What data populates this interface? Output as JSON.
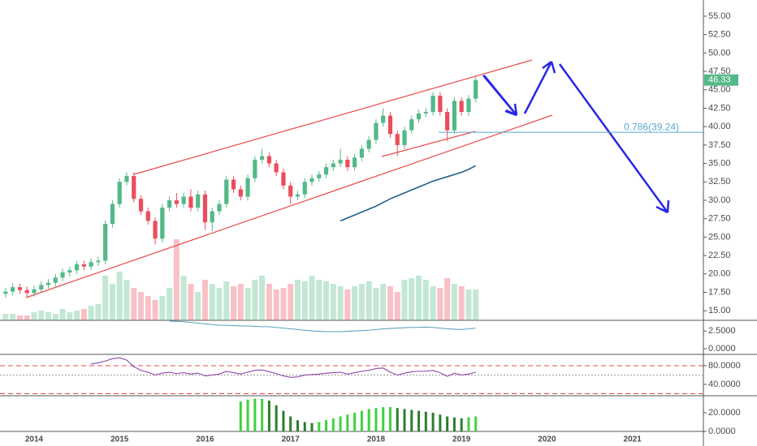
{
  "chart_data": [
    {
      "type": "candlestick",
      "ylim": [
        13.7,
        57.2
      ],
      "yticks": [
        {
          "value": 15,
          "label": "15.00"
        },
        {
          "value": 17.5,
          "label": "17.50"
        },
        {
          "value": 20,
          "label": "20.00"
        },
        {
          "value": 22.5,
          "label": "22.50"
        },
        {
          "value": 25,
          "label": "25.00"
        },
        {
          "value": 27.5,
          "label": "27.50"
        },
        {
          "value": 30,
          "label": "30.00"
        },
        {
          "value": 32.5,
          "label": "32.50"
        },
        {
          "value": 35,
          "label": "35.00"
        },
        {
          "value": 37.5,
          "label": "37.50"
        },
        {
          "value": 40,
          "label": "40.00"
        },
        {
          "value": 42.5,
          "label": "42.50"
        },
        {
          "value": 45,
          "label": "45.00"
        },
        {
          "value": 47.5,
          "label": "47.50"
        },
        {
          "value": 50,
          "label": "50.00"
        },
        {
          "value": 52.5,
          "label": "52.50"
        },
        {
          "value": 55,
          "label": "55.00"
        }
      ],
      "x_labels": [
        "2014",
        "2015",
        "2016",
        "2017",
        "2018",
        "2019",
        "2020",
        "2021"
      ],
      "up_color": "#53b987",
      "down_color": "#eb4d5c",
      "open": [
        17.3,
        17.6,
        18.2,
        17.8,
        17.4,
        17.9,
        18.5,
        18.8,
        19.5,
        20.2,
        20.5,
        21.3,
        21.0,
        21.6,
        21.8,
        26.8,
        29.5,
        32.5,
        33.3,
        30.2,
        28.5,
        27.2,
        24.8,
        29.0,
        30.0,
        29.5,
        30.5,
        29.0,
        30.8,
        27.0,
        28.5,
        29.5,
        32.8,
        31.5,
        30.5,
        33.0,
        35.5,
        36.0,
        35.0,
        33.8,
        32.0,
        30.5,
        30.8,
        32.5,
        33.0,
        33.5,
        34.5,
        35.0,
        35.5,
        34.5,
        35.8,
        37.0,
        38.2,
        40.5,
        41.5,
        39.0,
        37.5,
        39.5,
        41.0,
        41.8,
        42.0,
        44.2,
        42.0,
        39.5,
        43.5,
        42.0,
        43.8
      ],
      "high": [
        18.1,
        18.7,
        18.7,
        18.3,
        18.4,
        19.0,
        19.3,
        20.0,
        20.7,
        21.0,
        21.8,
        21.8,
        22.1,
        22.3,
        27.3,
        30.0,
        33.0,
        33.8,
        33.8,
        30.7,
        29.0,
        27.7,
        29.5,
        30.5,
        31.0,
        31.0,
        31.5,
        31.3,
        31.3,
        29.0,
        30.0,
        33.3,
        33.3,
        32.0,
        33.5,
        36.0,
        37.0,
        36.5,
        35.5,
        34.3,
        32.5,
        31.3,
        33.0,
        33.5,
        34.0,
        35.0,
        35.5,
        37.0,
        36.0,
        36.3,
        37.5,
        38.7,
        41.0,
        42.5,
        42.0,
        39.5,
        40.0,
        41.5,
        42.3,
        42.5,
        44.7,
        44.7,
        42.5,
        44.0,
        44.0,
        44.3,
        46.8
      ],
      "low": [
        16.8,
        17.1,
        17.3,
        16.9,
        16.9,
        17.4,
        18.0,
        18.3,
        19.0,
        19.7,
        20.0,
        20.5,
        20.5,
        21.1,
        21.3,
        26.3,
        29.0,
        32.0,
        29.7,
        28.0,
        26.7,
        24.0,
        24.3,
        28.5,
        29.0,
        29.0,
        28.5,
        28.5,
        26.0,
        25.8,
        28.0,
        29.0,
        31.0,
        30.0,
        30.0,
        32.5,
        35.0,
        34.5,
        33.3,
        31.5,
        29.5,
        30.0,
        30.3,
        32.0,
        32.5,
        33.0,
        34.0,
        34.5,
        34.0,
        34.0,
        35.3,
        36.5,
        37.7,
        40.0,
        38.5,
        36.0,
        37.0,
        39.0,
        40.5,
        41.3,
        41.5,
        41.5,
        38.0,
        39.0,
        41.5,
        41.5,
        43.3
      ],
      "close": [
        17.6,
        18.2,
        17.8,
        17.4,
        17.9,
        18.5,
        18.8,
        19.5,
        20.2,
        20.5,
        21.3,
        21.0,
        21.6,
        21.8,
        26.8,
        29.5,
        32.5,
        33.3,
        30.2,
        28.5,
        27.2,
        24.8,
        29.0,
        30.0,
        29.5,
        30.5,
        29.0,
        30.8,
        27.0,
        28.5,
        29.5,
        32.8,
        31.5,
        30.5,
        33.0,
        35.5,
        36.0,
        35.0,
        33.8,
        32.0,
        30.5,
        30.8,
        32.5,
        33.0,
        33.5,
        34.5,
        35.0,
        35.5,
        34.5,
        35.8,
        37.0,
        38.2,
        40.5,
        41.5,
        39.0,
        37.5,
        39.5,
        41.0,
        41.8,
        42.0,
        44.2,
        42.0,
        39.5,
        43.5,
        42.0,
        43.8,
        46.33
      ],
      "volume": [
        8,
        8,
        6,
        6,
        10,
        12,
        10,
        8,
        14,
        10,
        12,
        14,
        18,
        20,
        55,
        45,
        60,
        50,
        40,
        35,
        30,
        25,
        30,
        40,
        100,
        55,
        45,
        35,
        50,
        45,
        40,
        48,
        42,
        45,
        40,
        50,
        55,
        45,
        38,
        40,
        45,
        50,
        48,
        55,
        50,
        48,
        45,
        42,
        38,
        42,
        45,
        48,
        40,
        45,
        42,
        35,
        50,
        52,
        55,
        50,
        42,
        40,
        52,
        45,
        42,
        38,
        38
      ],
      "moving_average": [
        null,
        null,
        null,
        null,
        null,
        null,
        null,
        null,
        null,
        null,
        null,
        null,
        null,
        null,
        null,
        null,
        null,
        null,
        null,
        null,
        null,
        null,
        null,
        null,
        null,
        null,
        null,
        null,
        null,
        null,
        null,
        null,
        null,
        null,
        null,
        null,
        null,
        null,
        null,
        null,
        null,
        null,
        null,
        null,
        null,
        null,
        null,
        27.2,
        27.6,
        28.0,
        28.4,
        28.8,
        29.2,
        29.7,
        30.2,
        30.6,
        31.0,
        31.4,
        31.8,
        32.2,
        32.6,
        32.9,
        33.2,
        33.5,
        33.8,
        34.2,
        34.7
      ],
      "ma_color": "#1f5f8b",
      "fib_level": 39.24,
      "fib_label": "0.786(39.24)",
      "fib_color": "#5aa6cf"
    },
    {
      "type": "line",
      "ylim": [
        -0.8,
        4
      ],
      "yticks": [
        {
          "value": 0,
          "label": "0.0000"
        },
        {
          "value": 2.5,
          "label": "2.5000"
        }
      ],
      "color": "#5a9fc0",
      "values": [
        null,
        null,
        null,
        null,
        null,
        null,
        null,
        null,
        null,
        null,
        null,
        null,
        null,
        null,
        null,
        null,
        null,
        null,
        null,
        null,
        null,
        null,
        null,
        3.9,
        3.85,
        3.8,
        3.7,
        3.6,
        3.5,
        3.4,
        3.3,
        3.3,
        3.25,
        3.2,
        3.2,
        3.15,
        3.1,
        3.1,
        3.0,
        2.9,
        2.8,
        2.7,
        2.6,
        2.5,
        2.45,
        2.4,
        2.4,
        2.4,
        2.45,
        2.5,
        2.55,
        2.6,
        2.7,
        2.8,
        2.85,
        2.9,
        2.95,
        3.0,
        3.0,
        3.05,
        3.0,
        2.9,
        2.8,
        2.75,
        2.7,
        2.8,
        2.9
      ]
    },
    {
      "type": "line",
      "ylim": [
        15.6,
        104.3
      ],
      "yticks": [
        {
          "value": 40,
          "label": "40.0000"
        },
        {
          "value": 80,
          "label": "80.0000"
        }
      ],
      "color": "#8e44ad",
      "levels": [
        80,
        60,
        20
      ],
      "values": [
        null,
        null,
        null,
        null,
        null,
        null,
        null,
        null,
        null,
        null,
        null,
        null,
        84,
        86,
        90,
        95,
        97,
        92,
        78,
        70,
        66,
        60,
        64,
        66,
        63,
        65,
        62,
        64,
        58,
        60,
        62,
        68,
        65,
        62,
        66,
        70,
        71,
        67,
        63,
        58,
        55,
        56,
        60,
        61,
        62,
        64,
        65,
        66,
        62,
        65,
        68,
        70,
        74,
        75,
        66,
        60,
        64,
        67,
        68,
        68,
        70,
        65,
        57,
        64,
        60,
        62,
        66
      ]
    },
    {
      "type": "bar",
      "ylim": [
        0,
        38.2
      ],
      "yticks": [
        {
          "value": 0,
          "label": "0.0000"
        },
        {
          "value": 20,
          "label": "20.0000"
        }
      ],
      "color": "#3fd13f",
      "dark_color": "#2e7d32",
      "values": [
        null,
        null,
        null,
        null,
        null,
        null,
        null,
        null,
        null,
        null,
        null,
        null,
        null,
        null,
        null,
        null,
        null,
        null,
        null,
        null,
        null,
        null,
        null,
        null,
        null,
        null,
        null,
        null,
        null,
        null,
        null,
        null,
        null,
        32,
        34,
        35,
        35,
        33,
        28,
        22,
        16,
        12,
        10,
        9,
        10,
        12,
        14,
        16,
        18,
        20,
        22,
        24,
        25,
        26,
        26,
        25,
        24,
        23,
        22,
        21,
        20,
        18,
        16,
        15,
        14,
        15,
        16
      ]
    }
  ]
}
